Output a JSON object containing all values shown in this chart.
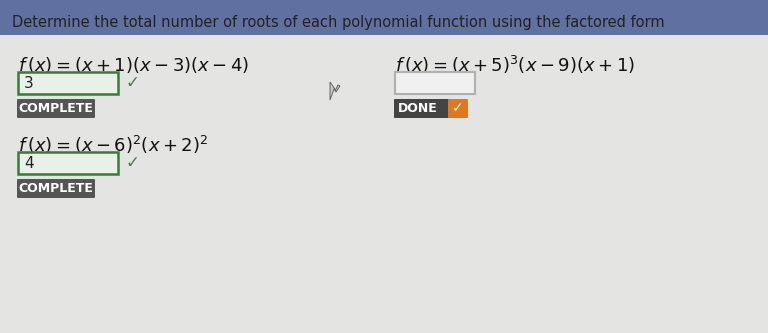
{
  "title": "Determine the total number of roots of each polynomial function using the factored form",
  "title_fontsize": 10.5,
  "bg_color": "#e8e8e8",
  "title_bg": "#6070a0",
  "content_bg": "#e4e4e2",
  "func1": "f (x) = (x + 1)(x - 3)(x - 4)",
  "func2": "f (x) = (x + 5)^{3}(x - 9)(x + 1)",
  "func3": "f (x) = (x - 6)^{2}(x + 2)^{2}",
  "answer1": "3",
  "answer3": "4",
  "done_bg": "#e07820",
  "done_dark": "#444444",
  "done_text": "DONE",
  "complete_text": "COMPLETE",
  "checkmark_green": "#4a7a4a",
  "box_border_color": "#3a7a3a",
  "box_fill_color": "#e8f0e8",
  "empty_box_border": "#b0b0b0",
  "empty_box_fill": "#f0f0f0",
  "complete_bg": "#555555",
  "complete_text_color": "#ffffff",
  "func_fontsize": 13,
  "answer_fontsize": 12,
  "button_fontsize": 9
}
